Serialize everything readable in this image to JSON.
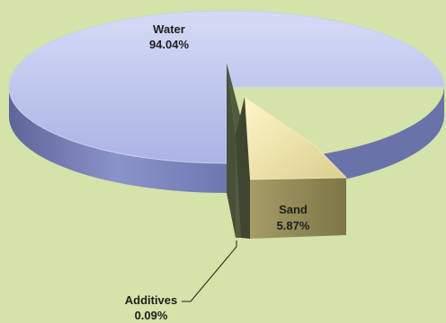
{
  "chart_data": {
    "type": "pie",
    "style": "3d-exploded",
    "slices": [
      {
        "label": "Water",
        "value": 94.04,
        "value_label": "94.04%",
        "color": "#b9c1ec",
        "side_color": "#6f77b0"
      },
      {
        "label": "Sand",
        "value": 5.87,
        "value_label": "5.87%",
        "color": "#ede4b4",
        "side_color": "#8c8552"
      },
      {
        "label": "Additives",
        "value": 0.09,
        "value_label": "0.09%",
        "color": "#525a40",
        "side_color": "#3a4030"
      }
    ],
    "background": "#d3e3a9"
  }
}
